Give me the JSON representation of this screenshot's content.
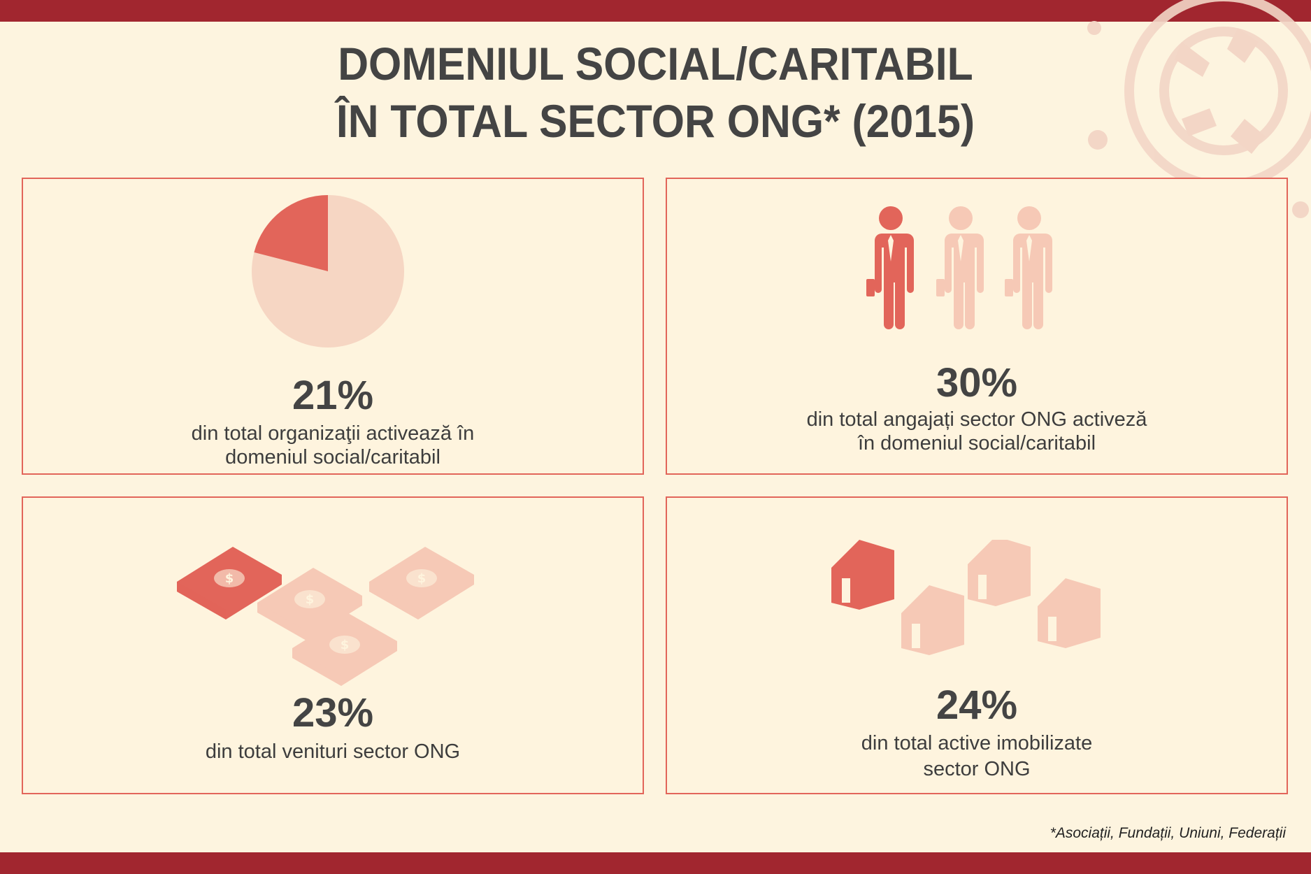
{
  "title": {
    "line1": "DOMENIUL SOCIAL/CARITABIL",
    "line2": "ÎN TOTAL SECTOR ONG* (2015)"
  },
  "colors": {
    "accent": "#e2655a",
    "light": "#f6c9b6",
    "band": "#a1262f",
    "background": "#fdf4df",
    "text": "#444444"
  },
  "cards": [
    {
      "icon": "pie-chart-icon",
      "share": 0.21,
      "percent": "21%",
      "line1": "din total organizaţii activează în",
      "line2": "domeniul social/caritabil"
    },
    {
      "icon": "businessman-icon",
      "share": 0.3,
      "percent": "30%",
      "line1": "din total angajați sector ONG activeză",
      "line2": "în domeniul social/caritabil"
    },
    {
      "icon": "money-stack-icon",
      "share": 0.23,
      "percent": "23%",
      "line1": "din total venituri sector ONG",
      "line2": ""
    },
    {
      "icon": "house-icon",
      "share": 0.24,
      "percent": "24%",
      "line1": "din total active imobilizate",
      "line2": "sector ONG"
    }
  ],
  "footnote": "*Asociații, Fundații, Uniuni, Federații"
}
